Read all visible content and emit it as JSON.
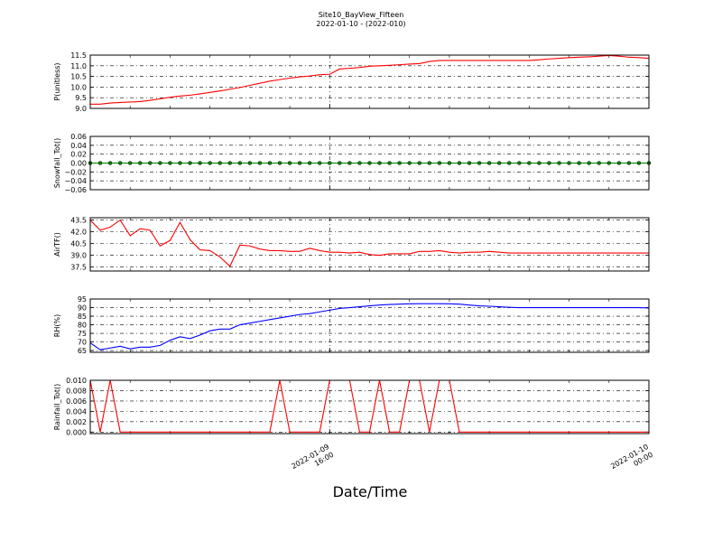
{
  "chart_data": {
    "type": "line",
    "title": "Site10_BayView_Fifteen",
    "subtitle": "2022-01-10 - (2022-010)",
    "xlabel": "Date/Time",
    "x_range": [
      "2022-01-09 10:00",
      "2022-01-10 00:00"
    ],
    "x_tick_labels": [
      {
        "x": "2022-01-09 16:00",
        "line1": "2022-01-09",
        "line2": "16:00"
      },
      {
        "x": "2022-01-10 00:00",
        "line1": "2022-01-10",
        "line2": "00:00"
      }
    ],
    "grid": true,
    "x": [
      "2022-01-09 10:00",
      "2022-01-09 10:15",
      "2022-01-09 10:30",
      "2022-01-09 10:45",
      "2022-01-09 11:00",
      "2022-01-09 11:15",
      "2022-01-09 11:30",
      "2022-01-09 11:45",
      "2022-01-09 12:00",
      "2022-01-09 12:15",
      "2022-01-09 12:30",
      "2022-01-09 12:45",
      "2022-01-09 13:00",
      "2022-01-09 13:15",
      "2022-01-09 13:30",
      "2022-01-09 13:45",
      "2022-01-09 14:00",
      "2022-01-09 14:15",
      "2022-01-09 14:30",
      "2022-01-09 14:45",
      "2022-01-09 15:00",
      "2022-01-09 15:15",
      "2022-01-09 15:30",
      "2022-01-09 15:45",
      "2022-01-09 16:00",
      "2022-01-09 16:15",
      "2022-01-09 16:30",
      "2022-01-09 16:45",
      "2022-01-09 17:00",
      "2022-01-09 17:15",
      "2022-01-09 17:30",
      "2022-01-09 17:45",
      "2022-01-09 18:00",
      "2022-01-09 18:15",
      "2022-01-09 18:30",
      "2022-01-09 18:45",
      "2022-01-09 19:00",
      "2022-01-09 19:15",
      "2022-01-09 19:30",
      "2022-01-09 19:45",
      "2022-01-09 20:00",
      "2022-01-09 20:15",
      "2022-01-09 20:30",
      "2022-01-09 20:45",
      "2022-01-09 21:00",
      "2022-01-09 21:15",
      "2022-01-09 21:30",
      "2022-01-09 21:45",
      "2022-01-09 22:00",
      "2022-01-09 22:15",
      "2022-01-09 22:30",
      "2022-01-09 22:45",
      "2022-01-09 23:00",
      "2022-01-09 23:15",
      "2022-01-09 23:30",
      "2022-01-09 23:45",
      "2022-01-10 00:00"
    ],
    "panels": [
      {
        "ylabel": "P(unitless)",
        "ylim": [
          9.0,
          11.5
        ],
        "yticks": [
          "9.0",
          "9.5",
          "10.0",
          "10.5",
          "11.0",
          "11.5"
        ],
        "ytick_values": [
          9.0,
          9.5,
          10.0,
          10.5,
          11.0,
          11.5
        ],
        "color": "#ff0000",
        "markers": false,
        "values": [
          9.2,
          9.2,
          9.25,
          9.28,
          9.3,
          9.32,
          9.38,
          9.45,
          9.52,
          9.58,
          9.62,
          9.68,
          9.75,
          9.82,
          9.9,
          9.98,
          10.08,
          10.18,
          10.28,
          10.35,
          10.42,
          10.48,
          10.52,
          10.58,
          10.6,
          10.85,
          10.88,
          10.92,
          10.98,
          11.0,
          11.02,
          11.05,
          11.08,
          11.1,
          11.2,
          11.25,
          11.25,
          11.25,
          11.25,
          11.25,
          11.25,
          11.25,
          11.25,
          11.25,
          11.25,
          11.28,
          11.32,
          11.35,
          11.38,
          11.4,
          11.42,
          11.45,
          11.48,
          11.45,
          11.4,
          11.38,
          11.35
        ]
      },
      {
        "ylabel": "Snowfall_Tot()",
        "ylim": [
          -0.06,
          0.06
        ],
        "yticks": [
          "−0.06",
          "−0.04",
          "−0.02",
          "0.00",
          "0.02",
          "0.04",
          "0.06"
        ],
        "ytick_values": [
          -0.06,
          -0.04,
          -0.02,
          0.0,
          0.02,
          0.04,
          0.06
        ],
        "color": "#008000",
        "markers": true,
        "values": [
          0,
          0,
          0,
          0,
          0,
          0,
          0,
          0,
          0,
          0,
          0,
          0,
          0,
          0,
          0,
          0,
          0,
          0,
          0,
          0,
          0,
          0,
          0,
          0,
          0,
          0,
          0,
          0,
          0,
          0,
          0,
          0,
          0,
          0,
          0,
          0,
          0,
          0,
          0,
          0,
          0,
          0,
          0,
          0,
          0,
          0,
          0,
          0,
          0,
          0,
          0,
          0,
          0,
          0,
          0,
          0,
          0
        ]
      },
      {
        "ylabel": "AirTF()",
        "ylim": [
          37.0,
          43.8
        ],
        "yticks": [
          "37.5",
          "39.0",
          "40.5",
          "42.0",
          "43.5"
        ],
        "ytick_values": [
          37.5,
          39.0,
          40.5,
          42.0,
          43.5
        ],
        "color": "#ff0000",
        "markers": false,
        "values": [
          43.5,
          42.2,
          42.6,
          43.5,
          41.5,
          42.4,
          42.2,
          40.2,
          40.9,
          43.2,
          41.0,
          39.7,
          39.6,
          38.8,
          37.6,
          40.3,
          40.2,
          39.8,
          39.6,
          39.6,
          39.5,
          39.5,
          39.9,
          39.6,
          39.4,
          39.4,
          39.3,
          39.4,
          39.1,
          39.0,
          39.2,
          39.2,
          39.2,
          39.5,
          39.5,
          39.6,
          39.4,
          39.3,
          39.4,
          39.4,
          39.5,
          39.4,
          39.3,
          39.3,
          39.3,
          39.3,
          39.3,
          39.3,
          39.3,
          39.3,
          39.3,
          39.3,
          39.3,
          39.3,
          39.3,
          39.3,
          39.3
        ]
      },
      {
        "ylabel": "RH(%)",
        "ylim": [
          64.0,
          95.0
        ],
        "yticks": [
          "65",
          "70",
          "75",
          "80",
          "85",
          "90",
          "95"
        ],
        "ytick_values": [
          65,
          70,
          75,
          80,
          85,
          90,
          95
        ],
        "color": "#0000ff",
        "markers": false,
        "values": [
          69.5,
          65.5,
          66.5,
          67.5,
          66.0,
          67.0,
          67.0,
          68.0,
          71.0,
          73.0,
          72.0,
          74.0,
          76.5,
          77.5,
          77.5,
          80.0,
          81.0,
          82.0,
          83.0,
          84.0,
          85.0,
          86.0,
          86.5,
          87.5,
          88.5,
          89.5,
          90.0,
          90.5,
          91.0,
          91.5,
          91.8,
          92.0,
          92.2,
          92.3,
          92.3,
          92.3,
          92.2,
          92.0,
          91.5,
          91.0,
          90.8,
          90.5,
          90.2,
          90.0,
          90.0,
          90.0,
          90.0,
          90.0,
          90.0,
          90.0,
          90.0,
          90.0,
          90.0,
          90.0,
          90.0,
          90.0,
          89.8
        ]
      },
      {
        "ylabel": "Rainfall_Tot()",
        "ylim": [
          -0.0003,
          0.01
        ],
        "yticks": [
          "0.000",
          "0.002",
          "0.004",
          "0.006",
          "0.008",
          "0.010"
        ],
        "ytick_values": [
          0.0,
          0.002,
          0.004,
          0.006,
          0.008,
          0.01
        ],
        "color": "#ff0000",
        "markers": false,
        "values": [
          0.01,
          0,
          0.01,
          0,
          0,
          0,
          0,
          0,
          0,
          0,
          0,
          0,
          0,
          0,
          0,
          0,
          0,
          0,
          0,
          0.01,
          0,
          0,
          0,
          0,
          0.01,
          0.01,
          0.01,
          0,
          0,
          0.01,
          0,
          0,
          0.01,
          0.01,
          0,
          0.01,
          0.01,
          0,
          0,
          0,
          0,
          0,
          0,
          0,
          0,
          0,
          0,
          0,
          0,
          0,
          0,
          0,
          0,
          0,
          0,
          0,
          0
        ]
      }
    ]
  }
}
